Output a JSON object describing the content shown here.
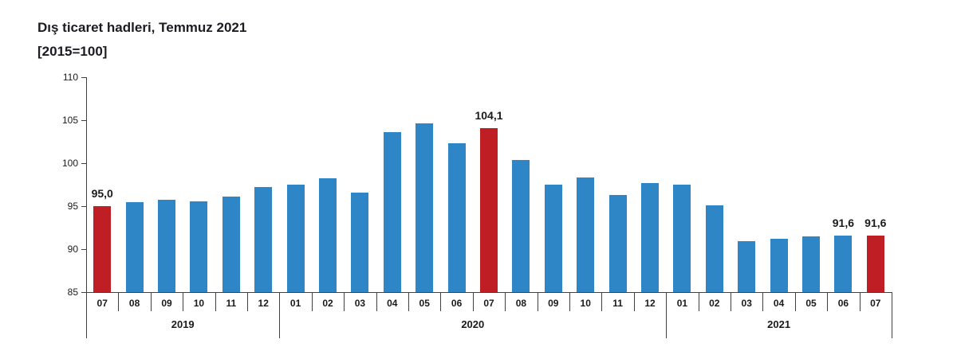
{
  "title": {
    "line1": "Dış ticaret hadleri, Temmuz 2021",
    "line2": "[2015=100]"
  },
  "colors": {
    "bar_default": "#2E86C6",
    "bar_highlight": "#BE1E24",
    "axis": "#404040",
    "text": "#1a1a1a"
  },
  "chart_data": {
    "type": "bar",
    "title": "Dış ticaret hadleri, Temmuz 2021 [2015=100]",
    "xlabel": "",
    "ylabel": "",
    "ylim": [
      85,
      110
    ],
    "yticks": [
      85,
      90,
      95,
      100,
      105,
      110
    ],
    "grid": false,
    "legend": false,
    "bars": [
      {
        "year": "2019",
        "month": "07",
        "value": 95.0,
        "highlight": true,
        "label": "95,0"
      },
      {
        "year": "2019",
        "month": "08",
        "value": 95.5,
        "highlight": false,
        "label": ""
      },
      {
        "year": "2019",
        "month": "09",
        "value": 95.7,
        "highlight": false,
        "label": ""
      },
      {
        "year": "2019",
        "month": "10",
        "value": 95.6,
        "highlight": false,
        "label": ""
      },
      {
        "year": "2019",
        "month": "11",
        "value": 96.1,
        "highlight": false,
        "label": ""
      },
      {
        "year": "2019",
        "month": "12",
        "value": 97.2,
        "highlight": false,
        "label": ""
      },
      {
        "year": "2020",
        "month": "01",
        "value": 97.5,
        "highlight": false,
        "label": ""
      },
      {
        "year": "2020",
        "month": "02",
        "value": 98.2,
        "highlight": false,
        "label": ""
      },
      {
        "year": "2020",
        "month": "03",
        "value": 96.6,
        "highlight": false,
        "label": ""
      },
      {
        "year": "2020",
        "month": "04",
        "value": 103.6,
        "highlight": false,
        "label": ""
      },
      {
        "year": "2020",
        "month": "05",
        "value": 104.6,
        "highlight": false,
        "label": ""
      },
      {
        "year": "2020",
        "month": "06",
        "value": 102.3,
        "highlight": false,
        "label": ""
      },
      {
        "year": "2020",
        "month": "07",
        "value": 104.1,
        "highlight": true,
        "label": "104,1"
      },
      {
        "year": "2020",
        "month": "08",
        "value": 100.4,
        "highlight": false,
        "label": ""
      },
      {
        "year": "2020",
        "month": "09",
        "value": 97.5,
        "highlight": false,
        "label": ""
      },
      {
        "year": "2020",
        "month": "10",
        "value": 98.3,
        "highlight": false,
        "label": ""
      },
      {
        "year": "2020",
        "month": "11",
        "value": 96.3,
        "highlight": false,
        "label": ""
      },
      {
        "year": "2020",
        "month": "12",
        "value": 97.7,
        "highlight": false,
        "label": ""
      },
      {
        "year": "2021",
        "month": "01",
        "value": 97.5,
        "highlight": false,
        "label": ""
      },
      {
        "year": "2021",
        "month": "02",
        "value": 95.1,
        "highlight": false,
        "label": ""
      },
      {
        "year": "2021",
        "month": "03",
        "value": 90.9,
        "highlight": false,
        "label": ""
      },
      {
        "year": "2021",
        "month": "04",
        "value": 91.2,
        "highlight": false,
        "label": ""
      },
      {
        "year": "2021",
        "month": "05",
        "value": 91.5,
        "highlight": false,
        "label": ""
      },
      {
        "year": "2021",
        "month": "06",
        "value": 91.6,
        "highlight": false,
        "label": "91,6"
      },
      {
        "year": "2021",
        "month": "07",
        "value": 91.6,
        "highlight": true,
        "label": "91,6"
      }
    ],
    "year_groups": [
      {
        "label": "2019",
        "count": 6
      },
      {
        "label": "2020",
        "count": 12
      },
      {
        "label": "2021",
        "count": 7
      }
    ]
  }
}
